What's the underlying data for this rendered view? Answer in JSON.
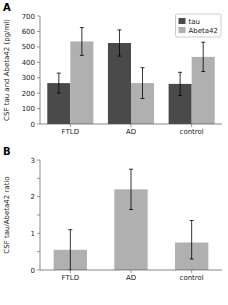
{
  "chart_data": [
    {
      "type": "bar",
      "title": "A",
      "categories": [
        "FTLD",
        "AD",
        "control"
      ],
      "series": [
        {
          "name": "tau",
          "color": "#4a4a4a",
          "values": [
            265,
            525,
            260
          ],
          "errors": [
            65,
            85,
            75
          ]
        },
        {
          "name": "Abeta42",
          "color": "#b0b0b0",
          "values": [
            535,
            265,
            435
          ],
          "errors": [
            90,
            100,
            95
          ]
        }
      ],
      "y_label": "CSF tau and Abeta42 (pg/ml)",
      "ylim": [
        0,
        700
      ],
      "yticks": [
        0,
        100,
        200,
        300,
        400,
        500,
        600,
        700
      ],
      "legend": "upper right"
    },
    {
      "type": "bar",
      "title": "B",
      "categories": [
        "FTLD",
        "AD",
        "control"
      ],
      "values": [
        0.55,
        2.2,
        0.75
      ],
      "errors_lower": [
        0.55,
        0.55,
        0.45
      ],
      "errors_upper": [
        0.55,
        0.55,
        0.6
      ],
      "color": "#b0b0b0",
      "y_label": "CSF tau/Abeta42 ratio",
      "ylim": [
        0,
        3
      ],
      "yticks": [
        0,
        {
          "value": 0.5,
          "label": ""
        },
        1,
        {
          "value": 1.5,
          "label": ""
        },
        2,
        {
          "value": 2.5,
          "label": ""
        },
        3
      ]
    }
  ]
}
